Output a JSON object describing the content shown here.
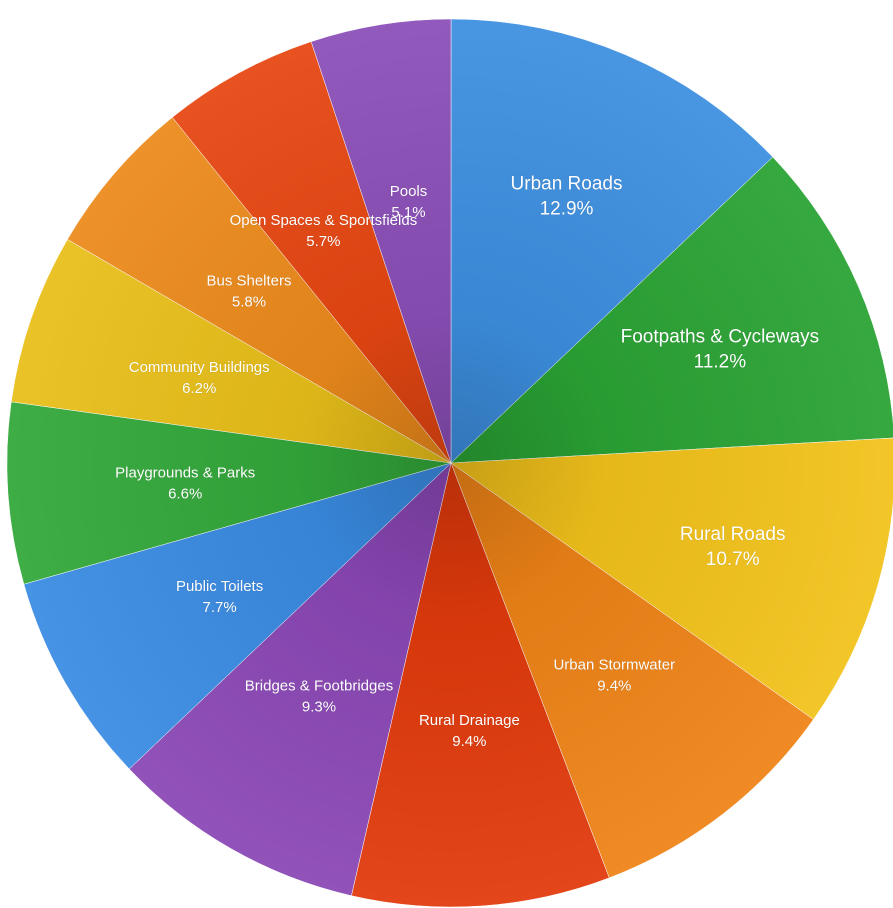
{
  "chart_data": {
    "type": "pie",
    "title": "",
    "legend": "none",
    "slices": [
      {
        "label": "Urban Roads",
        "value": 12.9,
        "display": "12.9%",
        "color": "#3d8fe0"
      },
      {
        "label": "Footpaths & Cycleways",
        "value": 11.2,
        "display": "11.2%",
        "color": "#2aa334"
      },
      {
        "label": "Rural Roads",
        "value": 10.7,
        "display": "10.7%",
        "color": "#f2c21b"
      },
      {
        "label": "Urban Stormwater",
        "value": 9.4,
        "display": "9.4%",
        "color": "#ee8317"
      },
      {
        "label": "Rural Drainage",
        "value": 9.4,
        "display": "9.4%",
        "color": "#e13a0c"
      },
      {
        "label": "Bridges & Footbridges",
        "value": 9.3,
        "display": "9.3%",
        "color": "#8a47b5"
      },
      {
        "label": "Public Toilets",
        "value": 7.7,
        "display": "7.7%",
        "color": "#3a8be2"
      },
      {
        "label": "Playgrounds & Parks",
        "value": 6.6,
        "display": "6.6%",
        "color": "#33a83a"
      },
      {
        "label": "Community Buildings",
        "value": 6.2,
        "display": "6.2%",
        "color": "#e8bf1a"
      },
      {
        "label": "Bus Shelters",
        "value": 5.8,
        "display": "5.8%",
        "color": "#ec8a1c"
      },
      {
        "label": "Open Spaces & Sportsfields",
        "value": 5.7,
        "display": "5.7%",
        "color": "#e64712"
      },
      {
        "label": "Pools",
        "value": 5.1,
        "display": "5.1%",
        "color": "#8b4fb8"
      }
    ]
  }
}
